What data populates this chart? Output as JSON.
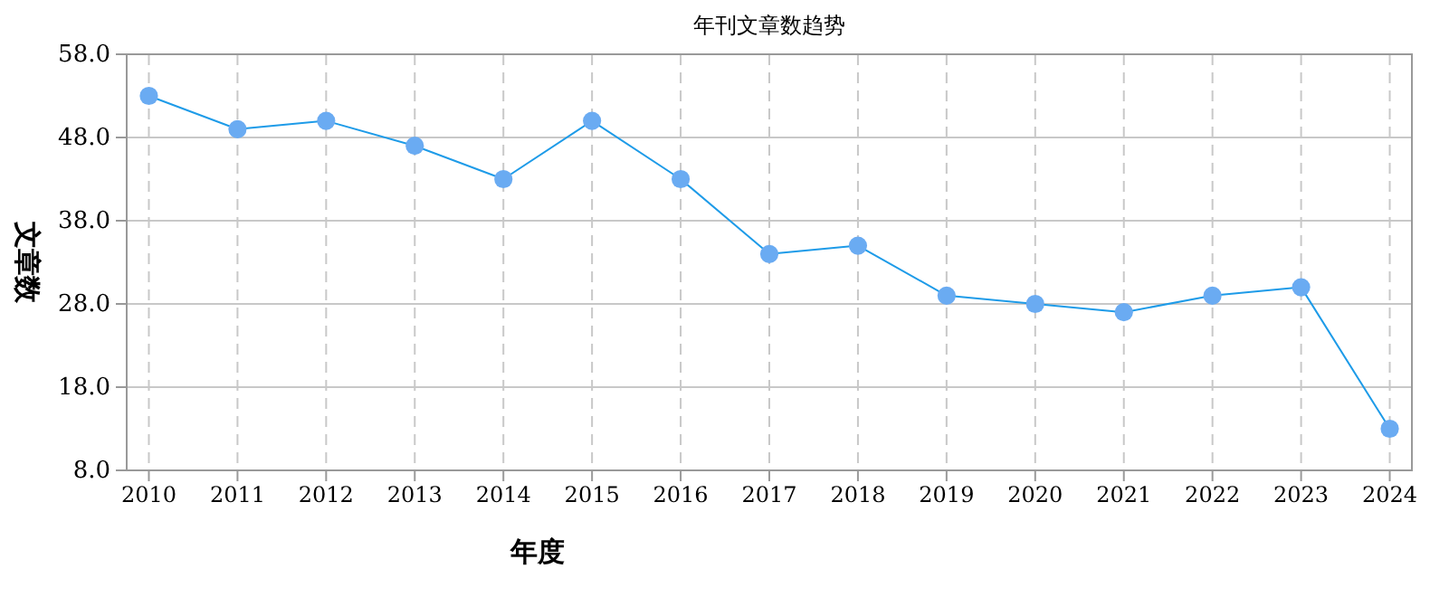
{
  "chart_data": {
    "type": "line",
    "title": "年刊文章数趋势",
    "xlabel": "年度",
    "ylabel": "文章数",
    "categories": [
      "2010",
      "2011",
      "2012",
      "2013",
      "2014",
      "2015",
      "2016",
      "2017",
      "2018",
      "2019",
      "2020",
      "2021",
      "2022",
      "2023",
      "2024"
    ],
    "series": [
      {
        "color": "#1e9be8",
        "values": [
          53,
          49,
          50,
          47,
          43,
          50,
          43,
          34,
          35,
          29,
          28,
          27,
          29,
          30,
          13
        ]
      }
    ],
    "ylim": [
      8,
      58
    ],
    "yticks": [
      {
        "value": 8,
        "label": "8.0"
      },
      {
        "value": 18,
        "label": "18.0"
      },
      {
        "value": 28,
        "label": "28.0"
      },
      {
        "value": 38,
        "label": "38.0"
      },
      {
        "value": 48,
        "label": "48.0"
      },
      {
        "value": 58,
        "label": "58.0"
      }
    ],
    "grid": true,
    "marker": "circle",
    "line_style": "solid"
  }
}
